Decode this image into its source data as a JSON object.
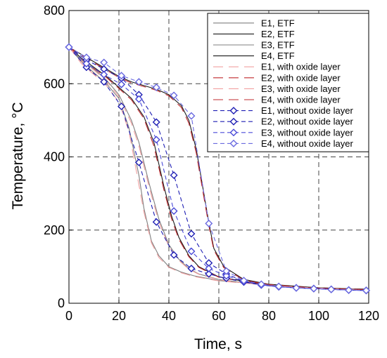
{
  "chart_data": {
    "type": "line",
    "xlabel": "Time, s",
    "ylabel": "Temperature, °C",
    "xlim": [
      0,
      120
    ],
    "ylim": [
      0,
      800
    ],
    "xticks": [
      "0",
      "20",
      "40",
      "60",
      "80",
      "100",
      "120"
    ],
    "yticks": [
      "0",
      "200",
      "400",
      "600",
      "800"
    ],
    "grid": true,
    "legend_position": "top-right",
    "series": [
      {
        "name": "E1, ETF",
        "color": "#7f7f7f",
        "dash": "solid",
        "marker": "none",
        "x": [
          0,
          5,
          10,
          15,
          20,
          24,
          28,
          30,
          33,
          36,
          40,
          45,
          50,
          60,
          70,
          80,
          100,
          120
        ],
        "y": [
          700,
          660,
          630,
          600,
          560,
          480,
          350,
          260,
          170,
          130,
          100,
          85,
          75,
          62,
          56,
          50,
          42,
          38
        ]
      },
      {
        "name": "E2, ETF",
        "color": "#1a1a1a",
        "dash": "solid",
        "marker": "none",
        "x": [
          0,
          5,
          10,
          15,
          20,
          25,
          30,
          34,
          38,
          41,
          44,
          48,
          52,
          60,
          70,
          80,
          100,
          120
        ],
        "y": [
          700,
          670,
          645,
          620,
          590,
          560,
          510,
          440,
          320,
          240,
          180,
          130,
          100,
          72,
          60,
          50,
          42,
          38
        ]
      },
      {
        "name": "E3, ETF",
        "color": "#7f7f7f",
        "dash": "solid",
        "marker": "none",
        "x": [
          0,
          5,
          10,
          15,
          20,
          25,
          28,
          32,
          36,
          40,
          44,
          48,
          52,
          60,
          70,
          80,
          100,
          120
        ],
        "y": [
          700,
          665,
          640,
          610,
          570,
          500,
          440,
          330,
          230,
          160,
          120,
          95,
          80,
          65,
          56,
          50,
          42,
          38
        ]
      },
      {
        "name": "E4, ETF",
        "color": "#1a1a1a",
        "dash": "solid",
        "marker": "none",
        "x": [
          0,
          5,
          10,
          15,
          20,
          25,
          30,
          35,
          40,
          45,
          48,
          51,
          54,
          56,
          58,
          62,
          70,
          80,
          100,
          120
        ],
        "y": [
          700,
          680,
          660,
          640,
          620,
          605,
          595,
          585,
          570,
          540,
          500,
          420,
          300,
          220,
          150,
          100,
          65,
          52,
          42,
          38
        ]
      },
      {
        "name": "E1, with oxide layer",
        "color": "#f2a0a0",
        "dash": "dashed",
        "marker": "none",
        "x": [
          0,
          5,
          10,
          15,
          20,
          24,
          27,
          30,
          33,
          36,
          40,
          45,
          50,
          60,
          70,
          80,
          100,
          120
        ],
        "y": [
          700,
          655,
          625,
          595,
          550,
          470,
          360,
          250,
          165,
          125,
          98,
          83,
          73,
          61,
          55,
          49,
          41,
          37
        ]
      },
      {
        "name": "E2, with oxide layer",
        "color": "#c0282d",
        "dash": "dashed",
        "marker": "none",
        "x": [
          0,
          5,
          10,
          15,
          20,
          25,
          30,
          34,
          38,
          41,
          44,
          48,
          52,
          60,
          70,
          80,
          100,
          120
        ],
        "y": [
          700,
          668,
          642,
          617,
          587,
          556,
          505,
          430,
          310,
          232,
          175,
          127,
          98,
          71,
          59,
          49,
          41,
          37
        ]
      },
      {
        "name": "E3, with oxide layer",
        "color": "#f2a0a0",
        "dash": "dashed",
        "marker": "none",
        "x": [
          0,
          5,
          10,
          15,
          20,
          25,
          28,
          32,
          36,
          40,
          44,
          48,
          52,
          60,
          70,
          80,
          100,
          120
        ],
        "y": [
          700,
          662,
          637,
          606,
          565,
          492,
          430,
          320,
          222,
          155,
          117,
          93,
          79,
          64,
          55,
          49,
          41,
          37
        ]
      },
      {
        "name": "E4, with oxide layer",
        "color": "#c0282d",
        "dash": "dashed",
        "marker": "none",
        "x": [
          0,
          5,
          10,
          15,
          20,
          25,
          30,
          35,
          40,
          45,
          48,
          51,
          54,
          56,
          58,
          62,
          70,
          80,
          100,
          120
        ],
        "y": [
          700,
          678,
          657,
          637,
          617,
          602,
          592,
          582,
          567,
          535,
          492,
          410,
          290,
          212,
          145,
          97,
          63,
          51,
          41,
          37
        ]
      },
      {
        "name": "E1, without oxide layer",
        "color": "#1f1fb4",
        "dash": "dashed",
        "marker": "diamond",
        "x": [
          0,
          7,
          14,
          21,
          28,
          35,
          42,
          49,
          56,
          63,
          70,
          77,
          84,
          91,
          98,
          105,
          112,
          119
        ],
        "y": [
          700,
          645,
          605,
          538,
          385,
          222,
          132,
          95,
          80,
          68,
          58,
          50,
          45,
          42,
          40,
          38,
          36,
          35
        ]
      },
      {
        "name": "E2, without oxide layer",
        "color": "#1f1fb4",
        "dash": "dashed",
        "marker": "diamond",
        "x": [
          0,
          7,
          14,
          21,
          28,
          35,
          42,
          49,
          56,
          63,
          70,
          77,
          84,
          91,
          98,
          105,
          112,
          119
        ],
        "y": [
          700,
          665,
          640,
          615,
          570,
          495,
          350,
          190,
          110,
          80,
          60,
          50,
          45,
          42,
          40,
          38,
          36,
          35
        ]
      },
      {
        "name": "E3, without oxide layer",
        "color": "#4a4ad8",
        "dash": "dashed",
        "marker": "diamond",
        "x": [
          0,
          7,
          14,
          21,
          28,
          35,
          42,
          49,
          56,
          63,
          70,
          77,
          84,
          91,
          98,
          105,
          112,
          119
        ],
        "y": [
          700,
          655,
          625,
          598,
          558,
          447,
          252,
          142,
          95,
          75,
          60,
          50,
          45,
          42,
          40,
          38,
          36,
          35
        ]
      },
      {
        "name": "E4, without oxide layer",
        "color": "#6a6ae0",
        "dash": "dashed",
        "marker": "diamond",
        "x": [
          0,
          7,
          14,
          21,
          28,
          35,
          42,
          49,
          56,
          63,
          70,
          77,
          84,
          91,
          98,
          105,
          112,
          119
        ],
        "y": [
          700,
          672,
          658,
          622,
          605,
          590,
          568,
          512,
          218,
          88,
          62,
          52,
          46,
          42,
          40,
          38,
          36,
          35
        ]
      }
    ]
  }
}
